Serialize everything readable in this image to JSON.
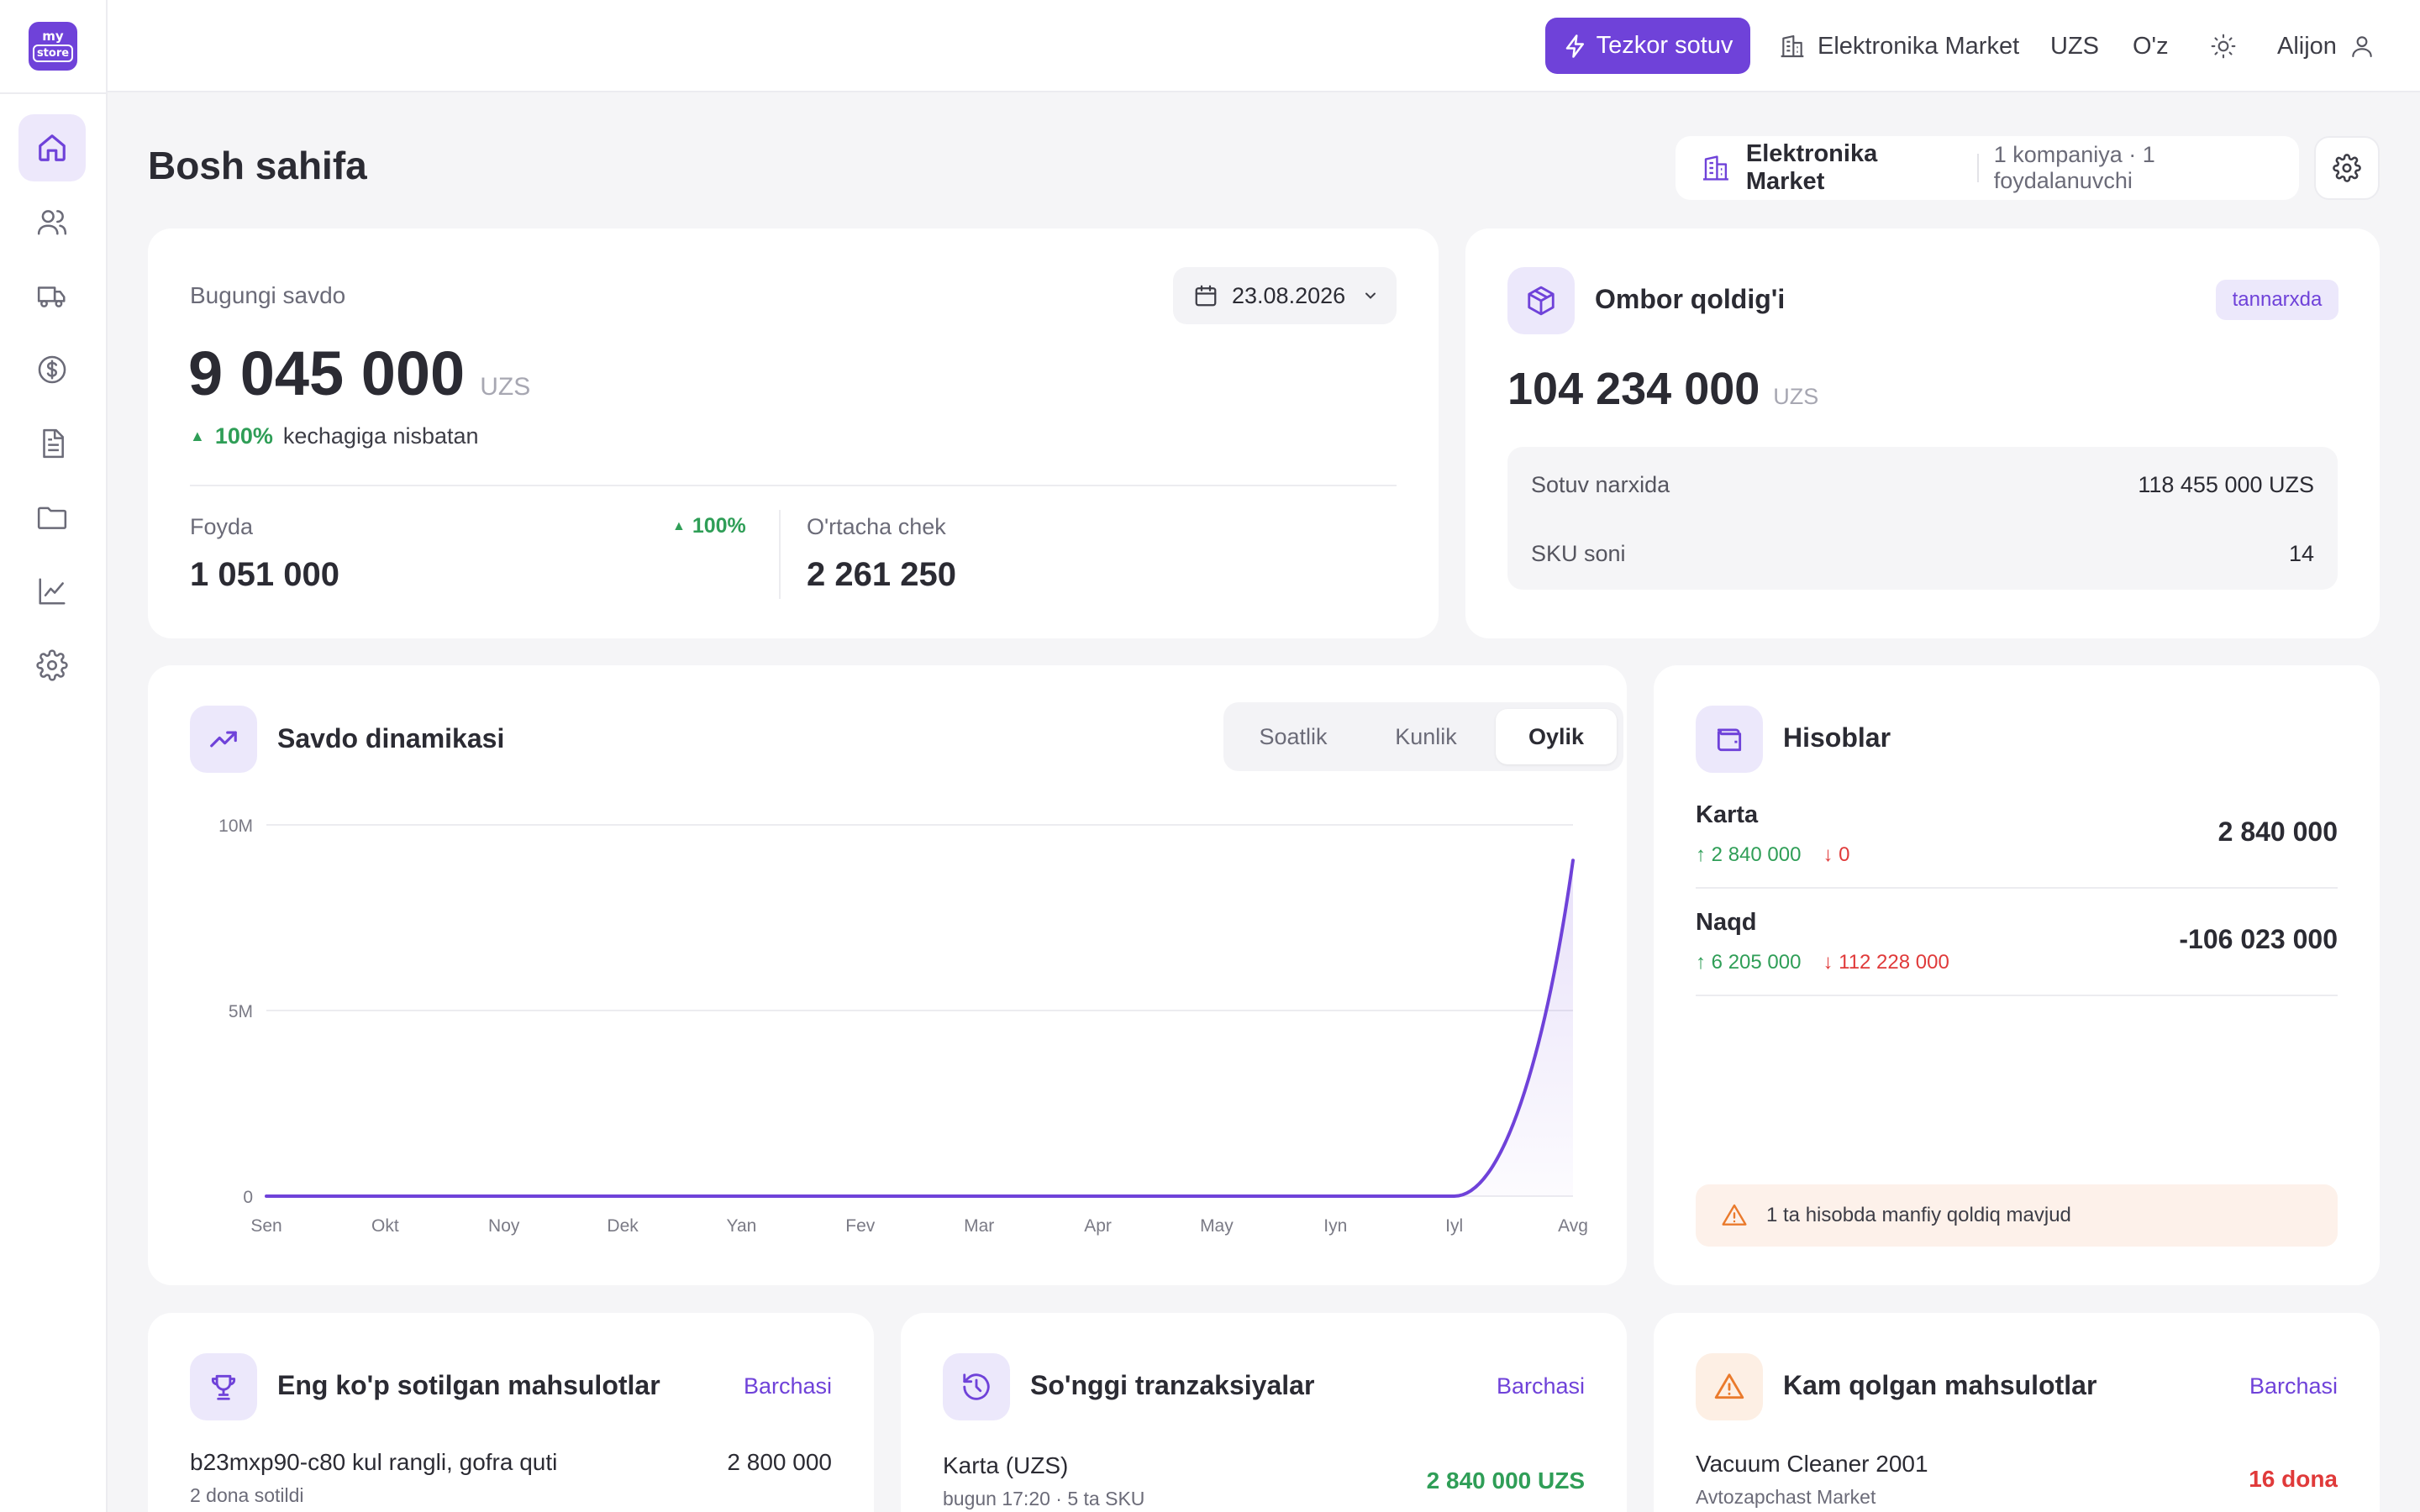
{
  "brand": {
    "logo_top": "my",
    "logo_bottom": "store",
    "accent": "#6f42d9"
  },
  "topbar": {
    "quick_sale": "Tezkor sotuv",
    "store_name": "Elektronika Market",
    "currency": "UZS",
    "language": "O'z",
    "user": "Alijon"
  },
  "sidebar": {
    "items": [
      {
        "icon": "home-icon",
        "active": true
      },
      {
        "icon": "users-icon"
      },
      {
        "icon": "truck-icon"
      },
      {
        "icon": "dollar-icon"
      },
      {
        "icon": "document-icon"
      },
      {
        "icon": "folder-icon"
      },
      {
        "icon": "chart-line-icon"
      },
      {
        "icon": "gear-icon"
      }
    ]
  },
  "page": {
    "title": "Bosh sahifa",
    "company_name": "Elektronika Market",
    "company_meta": "1 kompaniya · 1 foydalanuvchi"
  },
  "sales": {
    "label": "Bugungi savdo",
    "date": "23.08.2026",
    "amount": "9 045 000",
    "currency": "UZS",
    "change_pct": "100%",
    "change_text": "kechagiga nisbatan",
    "profit_label": "Foyda",
    "profit_value": "1 051 000",
    "profit_change": "100%",
    "avg_label": "O'rtacha chek",
    "avg_value": "2 261 250"
  },
  "warehouse": {
    "title": "Ombor qoldig'i",
    "badge": "tannarxda",
    "amount": "104 234 000",
    "currency": "UZS",
    "rows": [
      {
        "label": "Sotuv narxida",
        "value": "118 455 000 UZS"
      },
      {
        "label": "SKU soni",
        "value": "14"
      }
    ]
  },
  "dynamics": {
    "title": "Savdo dinamikasi",
    "tabs": [
      "Soatlik",
      "Kunlik",
      "Oylik"
    ],
    "active_tab": "Oylik"
  },
  "chart_data": {
    "type": "area",
    "categories": [
      "Sen",
      "Okt",
      "Noy",
      "Dek",
      "Yan",
      "Fev",
      "Mar",
      "Apr",
      "May",
      "Iyn",
      "Iyl",
      "Avg"
    ],
    "values": [
      0,
      0,
      0,
      0,
      0,
      0,
      0,
      0,
      0,
      0,
      0,
      9045000
    ],
    "y_ticks": [
      {
        "value": 0,
        "label": "0"
      },
      {
        "value": 5000000,
        "label": "5M"
      },
      {
        "value": 10000000,
        "label": "10M"
      }
    ],
    "ylim": [
      0,
      10000000
    ],
    "grid": true,
    "line_color": "#6f42d9"
  },
  "accounts": {
    "title": "Hisoblar",
    "items": [
      {
        "name": "Karta",
        "in": "2 840 000",
        "out": "0",
        "balance": "2 840 000"
      },
      {
        "name": "Naqd",
        "in": "6 205 000",
        "out": "112 228 000",
        "balance": "-106 023 000"
      }
    ],
    "warning": "1 ta hisobda manfiy qoldiq mavjud"
  },
  "top_products": {
    "title": "Eng ko'p sotilgan mahsulotlar",
    "link": "Barchasi",
    "items": [
      {
        "name": "b23mxp90-c80 kul rangli, gofra quti",
        "sub": "2 dona sotildi",
        "value": "2 800 000"
      }
    ]
  },
  "transactions": {
    "title": "So'nggi tranzaksiyalar",
    "link": "Barchasi",
    "items": [
      {
        "name": "Karta (UZS)",
        "sub": "bugun 17:20 · 5 ta SKU",
        "value": "2 840 000 UZS"
      }
    ]
  },
  "low_stock": {
    "title": "Kam qolgan mahsulotlar",
    "link": "Barchasi",
    "items": [
      {
        "name": "Vacuum Cleaner 2001",
        "sub": "Avtozapchast Market",
        "value": "16 dona"
      }
    ]
  }
}
